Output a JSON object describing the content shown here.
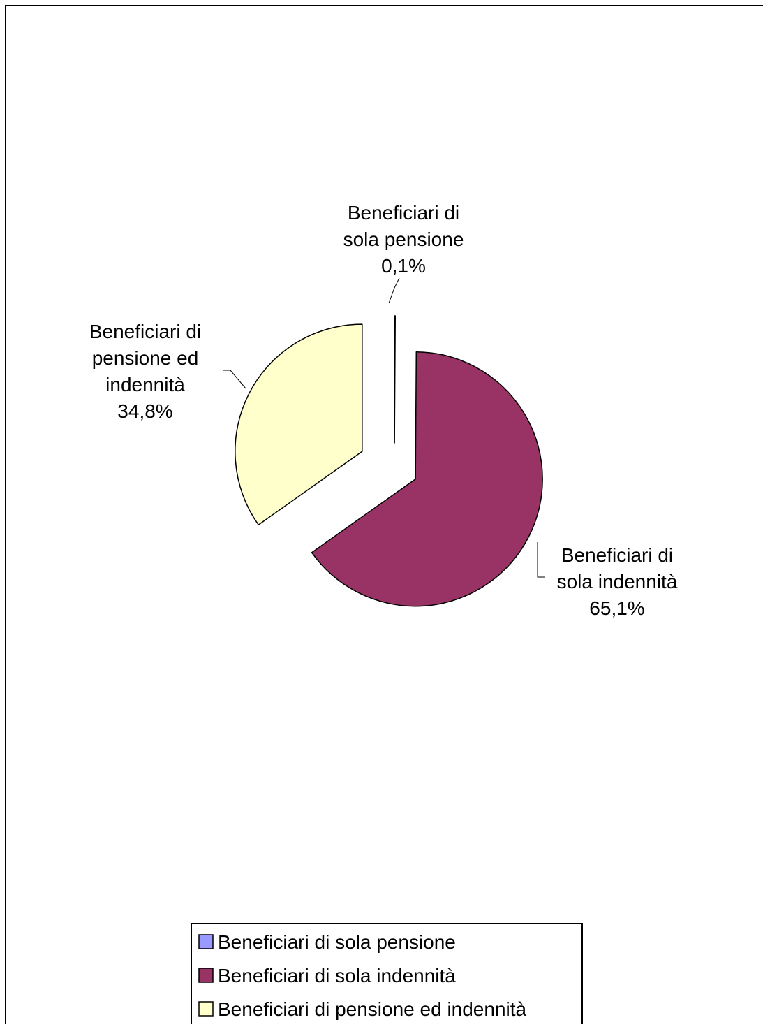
{
  "chart_data": {
    "type": "pie",
    "title": "",
    "exploded": true,
    "legend_position": "bottom",
    "slices": [
      {
        "name": "Beneficiari di sola pensione",
        "value": 0.1,
        "value_label": "0,1%",
        "label_lines": [
          "Beneficiari di",
          "sola pensione",
          "0,1%"
        ],
        "color": "#9999ff"
      },
      {
        "name": "Beneficiari di sola indennità",
        "value": 65.1,
        "value_label": "65,1%",
        "label_lines": [
          "Beneficiari di",
          "sola indennità",
          "65,1%"
        ],
        "color": "#993366"
      },
      {
        "name": "Beneficiari di pensione ed indennità",
        "value": 34.8,
        "value_label": "34,8%",
        "label_lines": [
          "Beneficiari di",
          "pensione ed",
          "indennità",
          "34,8%"
        ],
        "color": "#ffffcc"
      }
    ]
  }
}
